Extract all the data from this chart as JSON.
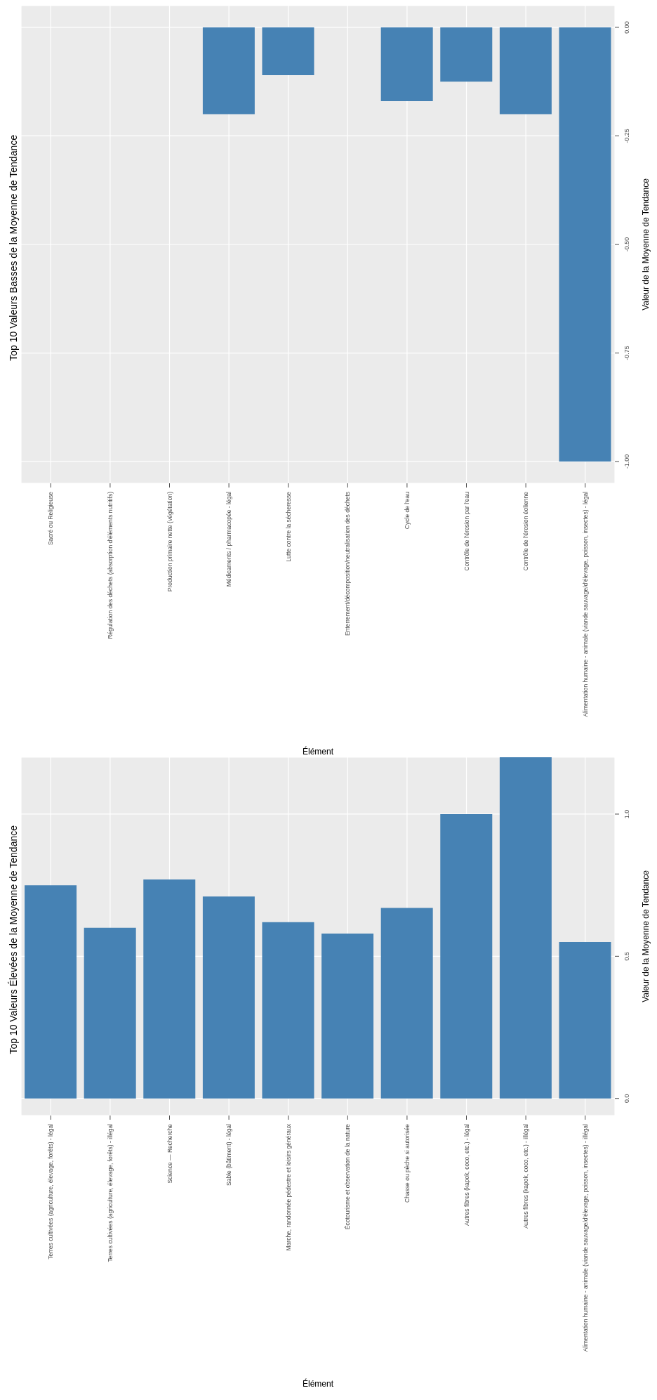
{
  "chart_data": [
    {
      "type": "bar",
      "title": "Top 10 Valeurs Basses de la Moyenne de Tendance",
      "xlabel": "Élément",
      "ylabel": "Valeur de la Moyenne de Tendance",
      "categories": [
        "Sacré ou Religieuse",
        "Régulation des déchets (absorption d'éléments nutritifs)",
        "Production primaire nette (végétation)",
        "Médicaments / pharmacopée - légal",
        "Lutte contre la sécheresse",
        "Enterrement/décomposition/neutralisation des déchets",
        "Cycle de l'eau",
        "Contrôle de l'érosion par l'eau",
        "Contrôle de l'érosion éolienne",
        "Alimentation humaine - animale (viande sauvage/d'élevage, poisson, insectes) - légal"
      ],
      "values": [
        0,
        0,
        0,
        -0.2,
        -0.11,
        0,
        -0.17,
        -0.125,
        -0.2,
        -1.0
      ],
      "color": "#4682b4",
      "ylim": [
        -1.05,
        0.05
      ],
      "yticks": [
        {
          "value": 0,
          "label": "0.00"
        },
        {
          "value": -0.25,
          "label": "-0.25"
        },
        {
          "value": -0.5,
          "label": "-0.50"
        },
        {
          "value": -0.75,
          "label": "-0.75"
        },
        {
          "value": -1,
          "label": "-1.00"
        }
      ],
      "grid": true
    },
    {
      "type": "bar",
      "title": "Top 10 Valeurs Élevées de la Moyenne de Tendance",
      "xlabel": "Élément",
      "ylabel": "Valeur de la Moyenne de Tendance",
      "categories": [
        "Terres cultivées (agriculture, élevage, forêts) - légal",
        "Terres cultivées (agriculture, élevage, forêts) - illégal",
        "Science — Recherche",
        "Sable (bâtiment) - légal",
        "Marche, randonnée pédestre et loisirs généraux",
        "Écotourisme et observation de la nature",
        "Chasse ou pêche si autorisée",
        "Autres fibres (kapok, coco, etc.) - légal",
        "Autres fibres (kapok, coco, etc.) - illégal",
        "Alimentation humaine - animale (viande sauvage/d'élevage, poisson, insectes) - illégal"
      ],
      "values": [
        0.75,
        0.6,
        0.77,
        0.71,
        0.62,
        0.58,
        0.67,
        1.0,
        1.2,
        0.55
      ],
      "color": "#4682b4",
      "ylim": [
        -0.06,
        1.2
      ],
      "yticks": [
        {
          "value": 0,
          "label": "0.0"
        },
        {
          "value": 0.5,
          "label": "0.5"
        },
        {
          "value": 1,
          "label": "1.0"
        }
      ],
      "grid": true
    }
  ]
}
